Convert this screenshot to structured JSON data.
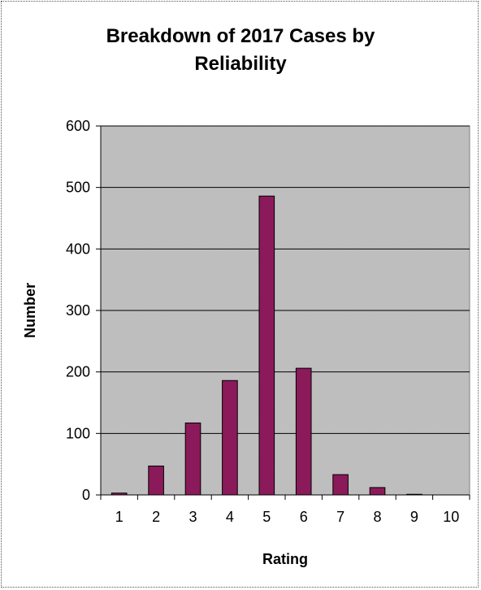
{
  "chart_data": {
    "type": "bar",
    "title": "Breakdown of 2017 Cases by Reliability",
    "title_lines": [
      "Breakdown of 2017 Cases by",
      "Reliability"
    ],
    "xlabel": "Rating",
    "ylabel": "Number",
    "categories": [
      "1",
      "2",
      "3",
      "4",
      "5",
      "6",
      "7",
      "8",
      "9",
      "10"
    ],
    "values": [
      3,
      47,
      117,
      186,
      486,
      206,
      33,
      12,
      1,
      0
    ],
    "ylim": [
      0,
      600
    ],
    "yticks": [
      0,
      100,
      200,
      300,
      400,
      500,
      600
    ],
    "grid": true,
    "legend": "none",
    "colors": {
      "bar": "#8b1a5a",
      "bar_border": "#000000",
      "plot_background": "#c0c0c0",
      "gridline": "#000000"
    }
  }
}
